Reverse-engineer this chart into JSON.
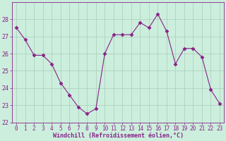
{
  "x": [
    0,
    1,
    2,
    3,
    4,
    5,
    6,
    7,
    8,
    9,
    10,
    11,
    12,
    13,
    14,
    15,
    16,
    17,
    18,
    19,
    20,
    21,
    22,
    23
  ],
  "y": [
    27.5,
    26.8,
    25.9,
    25.9,
    25.4,
    24.3,
    23.6,
    22.9,
    22.5,
    22.8,
    26.0,
    27.1,
    27.1,
    27.1,
    27.8,
    27.5,
    28.3,
    27.3,
    25.4,
    26.3,
    26.3,
    25.8,
    23.9,
    23.1
  ],
  "line_color": "#882288",
  "marker": "D",
  "marker_size": 2.5,
  "bg_color": "#cceedd",
  "grid_color": "#aaccbb",
  "xlabel": "Windchill (Refroidissement éolien,°C)",
  "xlabel_color": "#882288",
  "tick_color": "#882288",
  "ylim": [
    22,
    29
  ],
  "xlim": [
    -0.5,
    23.5
  ],
  "yticks": [
    22,
    23,
    24,
    25,
    26,
    27,
    28
  ],
  "xticks": [
    0,
    1,
    2,
    3,
    4,
    5,
    6,
    7,
    8,
    9,
    10,
    11,
    12,
    13,
    14,
    15,
    16,
    17,
    18,
    19,
    20,
    21,
    22,
    23
  ],
  "spine_color": "#882288",
  "title": ""
}
